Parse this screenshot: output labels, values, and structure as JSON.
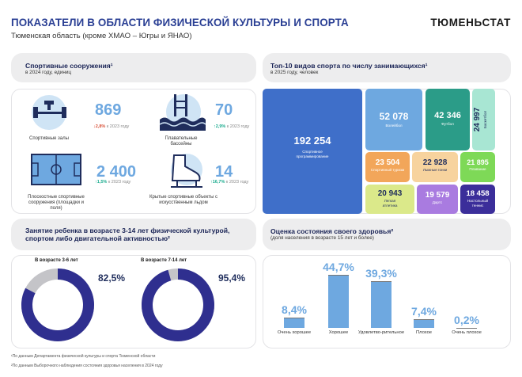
{
  "header": {
    "title": "ПОКАЗАТЕЛИ В ОБЛАСТИ ФИЗИЧЕСКОЙ КУЛЬТУРЫ И СПОРТА",
    "subtitle": "Тюменская область (кроме ХМАО – Югры и ЯНАО)",
    "brand": "ТЮМЕНЬСТАТ"
  },
  "facilities": {
    "title": "Спортивные сооружения¹",
    "subtitle": "в 2024 году, единиц",
    "items": [
      {
        "label": "Спортивные залы",
        "value": "869",
        "change": "2,8%",
        "vs": "к 2023 году",
        "dir": "down"
      },
      {
        "label": "Плавательные бассейны",
        "value": "70",
        "change": "2,9%",
        "vs": "к 2023 году",
        "dir": "up"
      },
      {
        "label": "Плоскостные спортивные сооружения (площадки и поля)",
        "value": "2 400",
        "change": "1,5%",
        "vs": "к 2023 году",
        "dir": "up"
      },
      {
        "label": "Крытые спортивные объекты с искусственным льдом",
        "value": "14",
        "change": "16,7%",
        "vs": "к 2023 году",
        "dir": "up"
      }
    ]
  },
  "top10": {
    "title": "Топ-10 видов спорта по числу занимающихся¹",
    "subtitle": "в 2025 году, человек",
    "items": [
      {
        "label": "Спортивное программирование",
        "value": "192 254",
        "color": "#3f6fc9"
      },
      {
        "label": "Волейбол",
        "value": "52 078",
        "color": "#6ea8e0"
      },
      {
        "label": "Футбол",
        "value": "42 346",
        "color": "#2b9c88"
      },
      {
        "label": "Баскетбол",
        "value": "24 997",
        "color": "#a8e6d3"
      },
      {
        "label": "Спортивный туризм",
        "value": "23 504",
        "color": "#f2a65a"
      },
      {
        "label": "Лыжные гонки",
        "value": "22 928",
        "color": "#f7d39e"
      },
      {
        "label": "Плавание",
        "value": "21 895",
        "color": "#7ed957"
      },
      {
        "label": "Легкая атлетика",
        "value": "20 943",
        "color": "#dbe98a"
      },
      {
        "label": "Дартс",
        "value": "19 579",
        "color": "#a97be0"
      },
      {
        "label": "Настольный теннис",
        "value": "18 458",
        "color": "#3b2e9a"
      }
    ]
  },
  "children": {
    "title": "Занятие ребенка в возрасте 3-14 лет физической культурой, спортом либо двигательной активностью²",
    "items": [
      {
        "label": "В возрасте 3-6 лет",
        "value": "82,5%",
        "pct": 82.5
      },
      {
        "label": "В возрасте 7-14 лет",
        "value": "95,4%",
        "pct": 95.4
      }
    ],
    "colors": {
      "fill": "#2f2f8f",
      "rest": "#c4c4c8"
    }
  },
  "health": {
    "title": "Оценка состояния своего здоровья²",
    "subtitle": "(доля населения в возрасте 15 лет и более)",
    "chart_data": {
      "type": "bar",
      "categories": [
        "Очень хорошее",
        "Хорошее",
        "Удовлетво-рительное",
        "Плохое",
        "Очень плохое"
      ],
      "values": [
        8.4,
        44.7,
        39.3,
        7.4,
        0.2
      ],
      "value_labels": [
        "8,4%",
        "44,7%",
        "39,3%",
        "7,4%",
        "0,2%"
      ],
      "ylim": [
        0,
        50
      ]
    }
  },
  "footnotes": [
    "¹По данным Департамента физической культуры и спорта Тюменской области",
    "²По данным Выборочного наблюдения состояния здоровья населения в 2024 году"
  ]
}
